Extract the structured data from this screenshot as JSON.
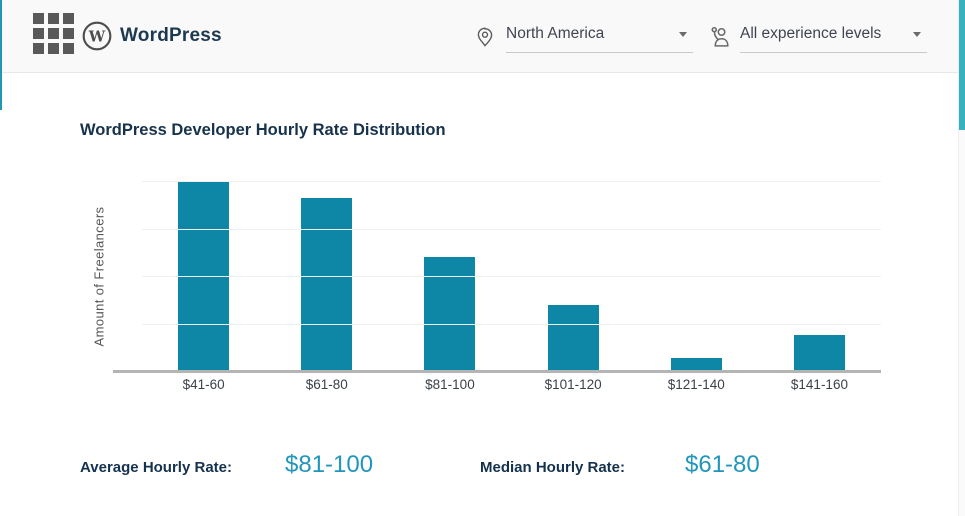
{
  "header": {
    "brand": "WordPress",
    "region_filter": {
      "value": "North America",
      "icon": "location-pin-icon"
    },
    "experience_filter": {
      "value": "All experience levels",
      "icon": "experience-person-icon"
    }
  },
  "chart_data": {
    "type": "bar",
    "title": "WordPress Developer Hourly Rate Distribution",
    "categories": [
      "$41-60",
      "$61-80",
      "$81-100",
      "$101-120",
      "$121-140",
      "$141-160"
    ],
    "values": [
      100,
      91,
      60,
      35,
      7,
      19
    ],
    "xlabel": "",
    "ylabel": "Amount of Freelancers",
    "ylim": [
      0,
      100
    ],
    "gridline_values": [
      100,
      75,
      50,
      25
    ],
    "grid": "horizontal, no numeric tick labels shown",
    "legend": "none",
    "bar_color": "#0e87a7"
  },
  "stats": {
    "average_label": "Average Hourly Rate:",
    "average_value": "$81-100",
    "median_label": "Median Hourly Rate:",
    "median_value": "$61-80"
  },
  "colors": {
    "bar_teal": "#0e87a7",
    "stat_value_teal": "#2196bd",
    "heading_navy": "#16324c",
    "header_bg": "#f9f9f9",
    "scrollbar_thumb_teal": "#35b2be"
  }
}
